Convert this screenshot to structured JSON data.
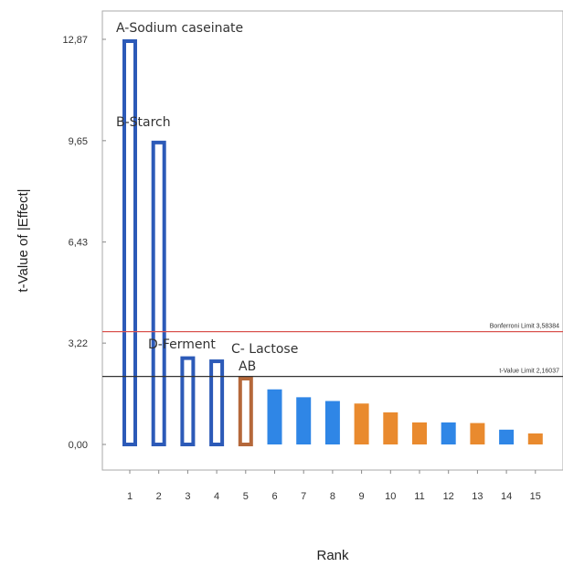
{
  "chart_data": {
    "type": "bar",
    "xlabel": "Rank",
    "ylabel": "t-Value of |Effect|",
    "categories": [
      "1",
      "2",
      "3",
      "4",
      "5",
      "6",
      "7",
      "8",
      "9",
      "10",
      "11",
      "12",
      "13",
      "14",
      "15"
    ],
    "yticks": [
      "0,00",
      "3,22",
      "6,43",
      "9,65",
      "12,87"
    ],
    "ylim": [
      0,
      13.6
    ],
    "values": [
      12.87,
      9.65,
      2.8,
      2.7,
      2.15,
      1.75,
      1.5,
      1.38,
      1.3,
      1.02,
      0.7,
      0.7,
      0.68,
      0.47,
      0.35
    ],
    "bar_styles": [
      "hollow",
      "hollow",
      "hollow",
      "hollow",
      "hollow",
      "solid",
      "solid",
      "solid",
      "solid",
      "solid",
      "solid",
      "solid",
      "solid",
      "solid",
      "solid"
    ],
    "bar_colors": [
      "#2c5ab8",
      "#2c5ab8",
      "#2c5ab8",
      "#2c5ab8",
      "#b5683a",
      "#2f86e6",
      "#2f86e6",
      "#2f86e6",
      "#e98a2e",
      "#e98a2e",
      "#e98a2e",
      "#2f86e6",
      "#e98a2e",
      "#2f86e6",
      "#e98a2e"
    ],
    "annotations": [
      {
        "text": "A-Sodium caseinate",
        "bar": 1
      },
      {
        "text": "B-Starch",
        "bar": 2
      },
      {
        "text": "D-Ferment",
        "bar": 3
      },
      {
        "text": "C- Lactose",
        "bar": 5
      },
      {
        "text": "AB",
        "bar": 5
      }
    ],
    "reference_lines": [
      {
        "label": "Bonferroni Limit 3,58384",
        "value": 3.58384,
        "color": "#d9534f"
      },
      {
        "label": "t-Value Limit 2,16037",
        "value": 2.16037,
        "color": "#333333"
      }
    ]
  }
}
